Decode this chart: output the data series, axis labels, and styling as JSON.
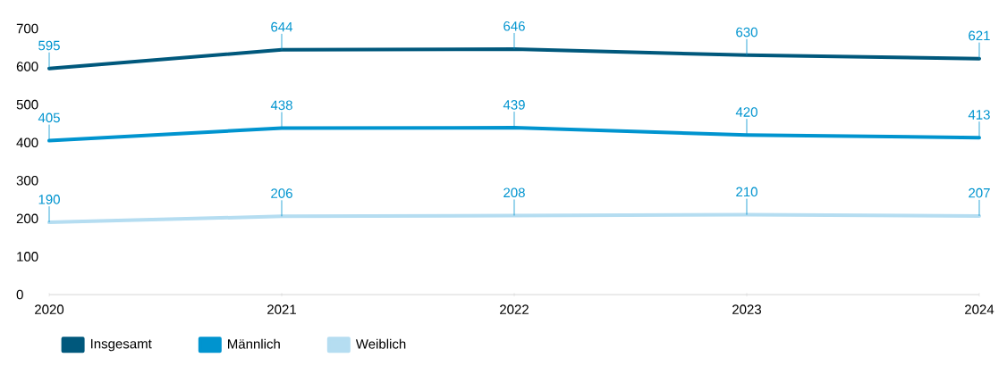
{
  "chart_data": {
    "type": "line",
    "categories": [
      "2020",
      "2021",
      "2022",
      "2023",
      "2024"
    ],
    "series": [
      {
        "name": "Insgesamt",
        "color": "#00587c",
        "values": [
          595,
          644,
          646,
          630,
          621
        ]
      },
      {
        "name": "Männlich",
        "color": "#0094cf",
        "values": [
          405,
          438,
          439,
          420,
          413
        ]
      },
      {
        "name": "Weiblich",
        "color": "#b5ddf1",
        "values": [
          190,
          206,
          208,
          210,
          207
        ]
      }
    ],
    "ylim": [
      0,
      700
    ],
    "yticks": [
      0,
      100,
      200,
      300,
      400,
      500,
      600,
      700
    ],
    "grid": false,
    "legend": "bottom left",
    "marker": "none",
    "line_style": "solid",
    "data_labels": true
  }
}
